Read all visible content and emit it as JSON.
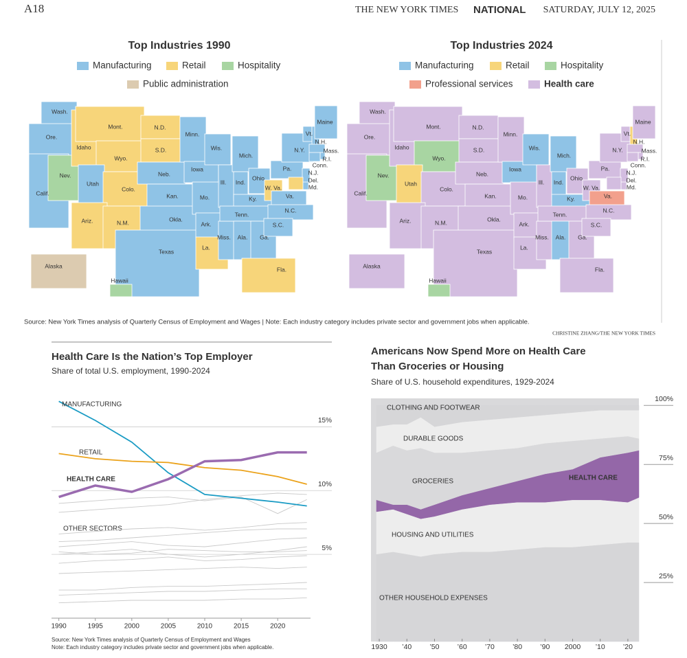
{
  "header": {
    "page": "A18",
    "paper": "THE NEW YORK TIMES",
    "section": "NATIONAL",
    "date": "SATURDAY, JULY 12, 2025"
  },
  "maps": [
    {
      "title": "Top Industries 1990",
      "industries": [
        {
          "name": "Manufacturing",
          "color": "#8fc3e6"
        },
        {
          "name": "Retail",
          "color": "#f7d57a"
        },
        {
          "name": "Hospitality",
          "color": "#a8d5a2"
        },
        {
          "name": "Public administration",
          "color": "#dccbb0"
        }
      ],
      "states": [
        {
          "label": "Wash.",
          "industry": "Manufacturing"
        },
        {
          "label": "Ore.",
          "industry": "Manufacturing"
        },
        {
          "label": "Calif.",
          "industry": "Manufacturing"
        },
        {
          "label": "Nev.",
          "industry": "Hospitality"
        },
        {
          "label": "Idaho",
          "industry": "Retail"
        },
        {
          "label": "Mont.",
          "industry": "Retail"
        },
        {
          "label": "Wyo.",
          "industry": "Retail"
        },
        {
          "label": "Utah",
          "industry": "Manufacturing"
        },
        {
          "label": "Colo.",
          "industry": "Retail"
        },
        {
          "label": "Ariz.",
          "industry": "Retail"
        },
        {
          "label": "N.M.",
          "industry": "Retail"
        },
        {
          "label": "N.D.",
          "industry": "Retail"
        },
        {
          "label": "S.D.",
          "industry": "Retail"
        },
        {
          "label": "Neb.",
          "industry": "Manufacturing"
        },
        {
          "label": "Kan.",
          "industry": "Manufacturing"
        },
        {
          "label": "Okla.",
          "industry": "Manufacturing"
        },
        {
          "label": "Texas",
          "industry": "Manufacturing"
        },
        {
          "label": "Minn.",
          "industry": "Manufacturing"
        },
        {
          "label": "Iowa",
          "industry": "Manufacturing"
        },
        {
          "label": "Mo.",
          "industry": "Manufacturing"
        },
        {
          "label": "Ark.",
          "industry": "Manufacturing"
        },
        {
          "label": "La.",
          "industry": "Retail"
        },
        {
          "label": "Wis.",
          "industry": "Manufacturing"
        },
        {
          "label": "Ill.",
          "industry": "Manufacturing"
        },
        {
          "label": "Miss.",
          "industry": "Manufacturing"
        },
        {
          "label": "Mich.",
          "industry": "Manufacturing"
        },
        {
          "label": "Ind.",
          "industry": "Manufacturing"
        },
        {
          "label": "Ky.",
          "industry": "Manufacturing"
        },
        {
          "label": "Tenn.",
          "industry": "Manufacturing"
        },
        {
          "label": "Ala.",
          "industry": "Manufacturing"
        },
        {
          "label": "Ga.",
          "industry": "Manufacturing"
        },
        {
          "label": "Fla.",
          "industry": "Retail"
        },
        {
          "label": "Ohio",
          "industry": "Manufacturing"
        },
        {
          "label": "W. Va.",
          "industry": "Retail"
        },
        {
          "label": "Va.",
          "industry": "Manufacturing"
        },
        {
          "label": "N.C.",
          "industry": "Manufacturing"
        },
        {
          "label": "S.C.",
          "industry": "Manufacturing"
        },
        {
          "label": "Pa.",
          "industry": "Manufacturing"
        },
        {
          "label": "N.Y.",
          "industry": "Manufacturing"
        },
        {
          "label": "Vt.",
          "industry": "Manufacturing"
        },
        {
          "label": "N.H.",
          "industry": "Manufacturing"
        },
        {
          "label": "Maine",
          "industry": "Manufacturing"
        },
        {
          "label": "Mass.",
          "industry": "Manufacturing"
        },
        {
          "label": "R.I.",
          "industry": "Manufacturing"
        },
        {
          "label": "Conn.",
          "industry": "Manufacturing"
        },
        {
          "label": "N.J.",
          "industry": "Manufacturing"
        },
        {
          "label": "Del.",
          "industry": "Manufacturing"
        },
        {
          "label": "Md.",
          "industry": "Retail"
        },
        {
          "label": "Alaska",
          "industry": "Public administration"
        },
        {
          "label": "Hawaii",
          "industry": "Hospitality"
        }
      ]
    },
    {
      "title": "Top Industries 2024",
      "industries": [
        {
          "name": "Manufacturing",
          "color": "#8fc3e6"
        },
        {
          "name": "Retail",
          "color": "#f7d57a"
        },
        {
          "name": "Hospitality",
          "color": "#a8d5a2"
        },
        {
          "name": "Professional services",
          "color": "#f2a08c"
        },
        {
          "name": "Health care",
          "color": "#d3bde0",
          "bold": true
        }
      ],
      "states": [
        {
          "label": "Wash.",
          "industry": "Health care"
        },
        {
          "label": "Ore.",
          "industry": "Health care"
        },
        {
          "label": "Calif.",
          "industry": "Health care"
        },
        {
          "label": "Nev.",
          "industry": "Hospitality"
        },
        {
          "label": "Idaho",
          "industry": "Health care"
        },
        {
          "label": "Mont.",
          "industry": "Health care"
        },
        {
          "label": "Wyo.",
          "industry": "Hospitality"
        },
        {
          "label": "Utah",
          "industry": "Retail"
        },
        {
          "label": "Colo.",
          "industry": "Health care"
        },
        {
          "label": "Ariz.",
          "industry": "Health care"
        },
        {
          "label": "N.M.",
          "industry": "Health care"
        },
        {
          "label": "N.D.",
          "industry": "Health care"
        },
        {
          "label": "S.D.",
          "industry": "Health care"
        },
        {
          "label": "Neb.",
          "industry": "Health care"
        },
        {
          "label": "Kan.",
          "industry": "Health care"
        },
        {
          "label": "Okla.",
          "industry": "Health care"
        },
        {
          "label": "Texas",
          "industry": "Health care"
        },
        {
          "label": "Minn.",
          "industry": "Health care"
        },
        {
          "label": "Iowa",
          "industry": "Manufacturing"
        },
        {
          "label": "Mo.",
          "industry": "Health care"
        },
        {
          "label": "Ark.",
          "industry": "Health care"
        },
        {
          "label": "La.",
          "industry": "Health care"
        },
        {
          "label": "Wis.",
          "industry": "Manufacturing"
        },
        {
          "label": "Ill.",
          "industry": "Health care"
        },
        {
          "label": "Miss.",
          "industry": "Health care"
        },
        {
          "label": "Mich.",
          "industry": "Manufacturing"
        },
        {
          "label": "Ind.",
          "industry": "Manufacturing"
        },
        {
          "label": "Ky.",
          "industry": "Manufacturing"
        },
        {
          "label": "Tenn.",
          "industry": "Health care"
        },
        {
          "label": "Ala.",
          "industry": "Manufacturing"
        },
        {
          "label": "Ga.",
          "industry": "Health care"
        },
        {
          "label": "Fla.",
          "industry": "Health care"
        },
        {
          "label": "Ohio",
          "industry": "Health care"
        },
        {
          "label": "W. Va.",
          "industry": "Health care"
        },
        {
          "label": "Va.",
          "industry": "Professional services"
        },
        {
          "label": "N.C.",
          "industry": "Health care"
        },
        {
          "label": "S.C.",
          "industry": "Health care"
        },
        {
          "label": "Pa.",
          "industry": "Health care"
        },
        {
          "label": "N.Y.",
          "industry": "Health care"
        },
        {
          "label": "Vt.",
          "industry": "Health care"
        },
        {
          "label": "N.H.",
          "industry": "Retail"
        },
        {
          "label": "Maine",
          "industry": "Health care"
        },
        {
          "label": "Mass.",
          "industry": "Health care"
        },
        {
          "label": "R.I.",
          "industry": "Health care"
        },
        {
          "label": "Conn.",
          "industry": "Health care"
        },
        {
          "label": "N.J.",
          "industry": "Health care"
        },
        {
          "label": "Del.",
          "industry": "Health care"
        },
        {
          "label": "Md.",
          "industry": "Health care"
        },
        {
          "label": "Alaska",
          "industry": "Health care"
        },
        {
          "label": "Hawaii",
          "industry": "Hospitality"
        }
      ]
    }
  ],
  "source": "Source: New York Times analysis of Quarterly Census of Employment and Wages | Note: Each industry category includes private sector and government jobs when applicable.",
  "credit": "CHRISTINE ZHANG/THE NEW YORK TIMES",
  "chart_data": [
    {
      "type": "line",
      "title": "Health Care Is the Nation’s Top Employer",
      "subtitle": "Share of total U.S. employment, 1990-2024",
      "x": [
        1990,
        1995,
        2000,
        2005,
        2010,
        2015,
        2020,
        2024
      ],
      "xlim": [
        1989,
        2024.5
      ],
      "xticks": [
        1990,
        1995,
        2000,
        2005,
        2010,
        2015,
        2020
      ],
      "ylim": [
        0,
        17.5
      ],
      "yticks": [
        {
          "value": 5,
          "label": "5%"
        },
        {
          "value": 10,
          "label": "10%"
        },
        {
          "value": 15,
          "label": "15%"
        }
      ],
      "grid": true,
      "series": [
        {
          "name": "MANUFACTURING",
          "color": "#1a9bc4",
          "values": [
            17.0,
            15.5,
            13.8,
            11.4,
            9.7,
            9.4,
            9.1,
            8.8
          ]
        },
        {
          "name": "RETAIL",
          "color": "#eba21a",
          "values": [
            12.9,
            12.5,
            12.3,
            12.2,
            11.8,
            11.6,
            11.1,
            10.5
          ]
        },
        {
          "name": "HEALTH CARE",
          "color": "#9a6bb0",
          "values": [
            9.5,
            10.4,
            9.9,
            10.9,
            12.3,
            12.4,
            13.0,
            13.0
          ]
        },
        {
          "color": "#c9c9c9",
          "values": [
            9.0,
            9.2,
            9.4,
            9.5,
            9.2,
            9.5,
            8.2,
            9.3
          ]
        },
        {
          "color": "#c9c9c9",
          "values": [
            8.3,
            8.5,
            8.7,
            8.9,
            9.3,
            9.6,
            9.8,
            9.7
          ]
        },
        {
          "color": "#c9c9c9",
          "values": [
            6.6,
            6.8,
            7.0,
            7.1,
            6.9,
            7.1,
            7.4,
            7.5
          ]
        },
        {
          "color": "#c9c9c9",
          "values": [
            6.0,
            6.1,
            6.3,
            6.5,
            6.7,
            6.9,
            7.0,
            7.0
          ]
        },
        {
          "color": "#c9c9c9",
          "values": [
            5.6,
            5.8,
            6.0,
            5.7,
            5.6,
            5.9,
            6.2,
            6.3
          ]
        },
        {
          "color": "#c9c9c9",
          "values": [
            5.2,
            5.0,
            5.1,
            5.4,
            5.3,
            5.2,
            5.2,
            5.3
          ]
        },
        {
          "color": "#c9c9c9",
          "values": [
            5.0,
            5.2,
            5.4,
            5.0,
            4.8,
            5.0,
            5.3,
            5.6
          ]
        },
        {
          "color": "#c9c9c9",
          "values": [
            4.3,
            4.5,
            4.6,
            4.8,
            4.5,
            4.6,
            4.8,
            4.9
          ]
        },
        {
          "color": "#c9c9c9",
          "values": [
            3.5,
            3.6,
            3.7,
            3.8,
            3.9,
            4.0,
            3.9,
            4.0
          ]
        },
        {
          "color": "#c9c9c9",
          "values": [
            2.2,
            2.2,
            2.4,
            2.5,
            2.5,
            2.6,
            2.7,
            2.8
          ]
        },
        {
          "color": "#c9c9c9",
          "values": [
            1.8,
            1.9,
            2.0,
            2.1,
            2.1,
            2.2,
            2.3,
            2.3
          ]
        },
        {
          "color": "#c9c9c9",
          "values": [
            1.2,
            1.3,
            1.4,
            1.4,
            1.4,
            1.5,
            1.5,
            1.6
          ]
        }
      ],
      "annotation": "OTHER SECTORS",
      "notes": [
        "Source: New York Times analysis of Quarterly Census of Employment and Wages",
        "Note: Each industry category includes private sector and government jobs when applicable."
      ]
    },
    {
      "type": "area",
      "title_lines": [
        "Americans Now Spend More on Health Care",
        "Than Groceries or Housing"
      ],
      "subtitle": "Share of U.S. household expenditures, 1929-2024",
      "x": [
        1929,
        1935,
        1940,
        1945,
        1950,
        1960,
        1970,
        1980,
        1990,
        2000,
        2010,
        2020,
        2024
      ],
      "xlim": [
        1927,
        2024
      ],
      "xticks": [
        1930,
        {
          "value": 1940,
          "label": "’40"
        },
        {
          "value": 1950,
          "label": "’50"
        },
        {
          "value": 1960,
          "label": "’60"
        },
        {
          "value": 1970,
          "label": "’70"
        },
        {
          "value": 1980,
          "label": "’80"
        },
        {
          "value": 1990,
          "label": "’90"
        },
        2000,
        {
          "value": 2010,
          "label": "’10"
        },
        {
          "value": 2020,
          "label": "’20"
        }
      ],
      "ylim": [
        0,
        103
      ],
      "yticks": [
        {
          "value": 25,
          "label": "25%"
        },
        {
          "value": 50,
          "label": "50%"
        },
        {
          "value": 75,
          "label": "75%"
        },
        {
          "value": 100,
          "label": "100%"
        }
      ],
      "stacked": true,
      "series": [
        {
          "name": "OTHER HOUSEHOLD EXPENSES",
          "color": "#d6d6d8",
          "values": [
            37,
            38,
            37,
            36,
            37,
            38,
            38,
            39,
            40,
            40,
            41,
            42,
            42
          ]
        },
        {
          "name": "HOUSING AND UTILITIES",
          "color": "#ededed",
          "values": [
            18,
            18,
            17,
            16,
            16,
            18,
            20,
            20,
            19,
            20,
            19,
            17,
            19
          ]
        },
        {
          "name": "HEALTH CARE",
          "color": "#9467a8",
          "values": [
            5,
            2,
            4,
            4,
            5,
            6,
            7,
            9,
            12,
            13,
            18,
            21,
            20
          ]
        },
        {
          "name": "GROCERIES",
          "color": "#d9d9db",
          "values": [
            20,
            25,
            23,
            26,
            22,
            18,
            16,
            14,
            13,
            12,
            8,
            7,
            5
          ]
        },
        {
          "name": "DURABLE GOODS",
          "color": "#ededed",
          "values": [
            11,
            9,
            11,
            13,
            11,
            13,
            13,
            13,
            12,
            12,
            12,
            11,
            12
          ]
        },
        {
          "name": "CLOTHING AND FOOTWEAR",
          "color": "#d6d6d8",
          "values": [
            9,
            8,
            8,
            5,
            9,
            7,
            6,
            5,
            4,
            3,
            2,
            2,
            2
          ]
        }
      ]
    }
  ]
}
